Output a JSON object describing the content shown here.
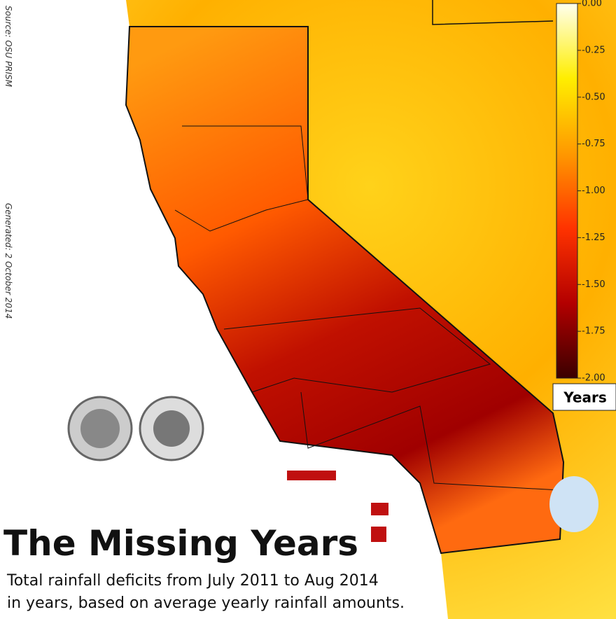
{
  "map": {
    "title": "The Missing Years",
    "subtitle_lines": [
      "Total rainfall deficits from July 2011 to Aug 2014",
      "in years, based on average yearly rainfall amounts."
    ],
    "source": "Source: OSU PRISM",
    "generated": "Generated: 2 October 2014",
    "colorbar": {
      "label": "Years",
      "lim": [
        -2,
        0
      ],
      "colors": [
        "#3a0000",
        "#b30000",
        "#ff3300",
        "#ff9900",
        "#ffee00",
        "#ffffee"
      ],
      "ticks": [
        {
          "value": 0,
          "label": "0.00"
        },
        {
          "value": -0.25,
          "label": "-0.25"
        },
        {
          "value": -0.5,
          "label": "-0.50"
        },
        {
          "value": -0.75,
          "label": "-0.75"
        },
        {
          "value": -1,
          "label": "-1.00"
        },
        {
          "value": -1.25,
          "label": "-1.25"
        },
        {
          "value": -1.5,
          "label": "-1.50"
        },
        {
          "value": -1.75,
          "label": "-1.75"
        },
        {
          "value": -2,
          "label": "-2.00"
        }
      ]
    }
  }
}
